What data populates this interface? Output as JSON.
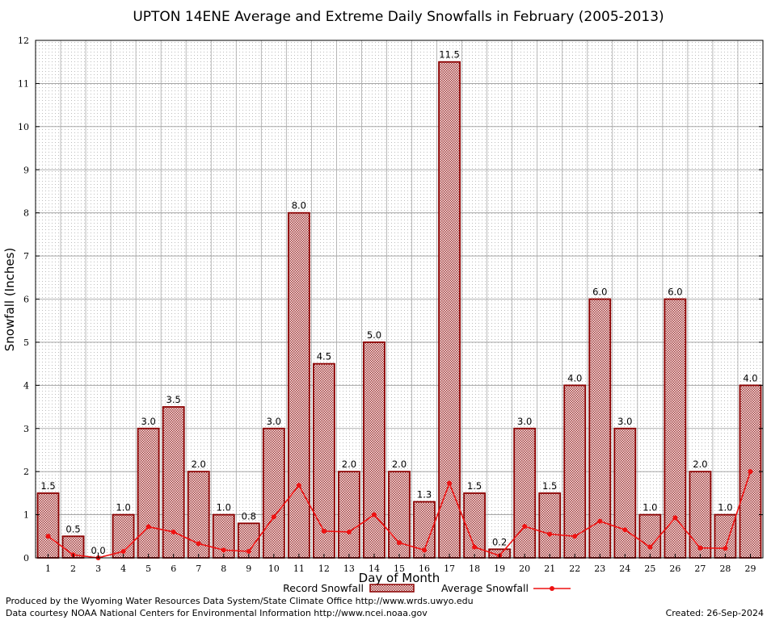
{
  "chart_data": {
    "type": "bar",
    "title": "UPTON 14ENE Average and Extreme Daily Snowfalls in February (2005-2013)",
    "xlabel": "Day of Month",
    "ylabel": "Snowfall (Inches)",
    "ylim": [
      0,
      12
    ],
    "yticks": [
      "0",
      "1",
      "2",
      "3",
      "4",
      "5",
      "6",
      "7",
      "8",
      "9",
      "10",
      "11",
      "12"
    ],
    "grid": true,
    "categories": [
      "1",
      "2",
      "3",
      "4",
      "5",
      "6",
      "7",
      "8",
      "9",
      "10",
      "11",
      "12",
      "13",
      "14",
      "15",
      "16",
      "17",
      "18",
      "19",
      "20",
      "21",
      "22",
      "23",
      "24",
      "25",
      "26",
      "27",
      "28",
      "29"
    ],
    "series": [
      {
        "name": "Record Snowfall",
        "kind": "bar",
        "color": "#8b0000",
        "values": [
          1.5,
          0.5,
          0.0,
          1.0,
          3.0,
          3.5,
          2.0,
          1.0,
          0.8,
          3.0,
          8.0,
          4.5,
          2.0,
          5.0,
          2.0,
          1.3,
          11.5,
          1.5,
          0.2,
          3.0,
          1.5,
          4.0,
          6.0,
          3.0,
          1.0,
          6.0,
          2.0,
          1.0,
          4.0
        ],
        "labels": [
          "1.5",
          "0.5",
          "0.0",
          "1.0",
          "3.0",
          "3.5",
          "2.0",
          "1.0",
          "0.8",
          "3.0",
          "8.0",
          "4.5",
          "2.0",
          "5.0",
          "2.0",
          "1.3",
          "11.5",
          "1.5",
          "0.2",
          "3.0",
          "1.5",
          "4.0",
          "6.0",
          "3.0",
          "1.0",
          "6.0",
          "2.0",
          "1.0",
          "4.0"
        ]
      },
      {
        "name": "Average Snowfall",
        "kind": "line",
        "color": "#ee1111",
        "values": [
          0.5,
          0.07,
          0.0,
          0.15,
          0.72,
          0.6,
          0.33,
          0.18,
          0.15,
          0.95,
          1.68,
          0.62,
          0.6,
          1.0,
          0.35,
          0.18,
          1.73,
          0.25,
          0.05,
          0.73,
          0.55,
          0.5,
          0.85,
          0.65,
          0.25,
          0.93,
          0.23,
          0.22,
          2.0
        ]
      }
    ],
    "legend_position": "bottom-center",
    "footer_left": [
      "Produced by the Wyoming Water Resources Data System/State Climate Office http://www.wrds.uwyo.edu",
      "Data courtesy NOAA National Centers for Environmental Information http://www.ncei.noaa.gov"
    ],
    "footer_right": "Created:  26-Sep-2024"
  }
}
